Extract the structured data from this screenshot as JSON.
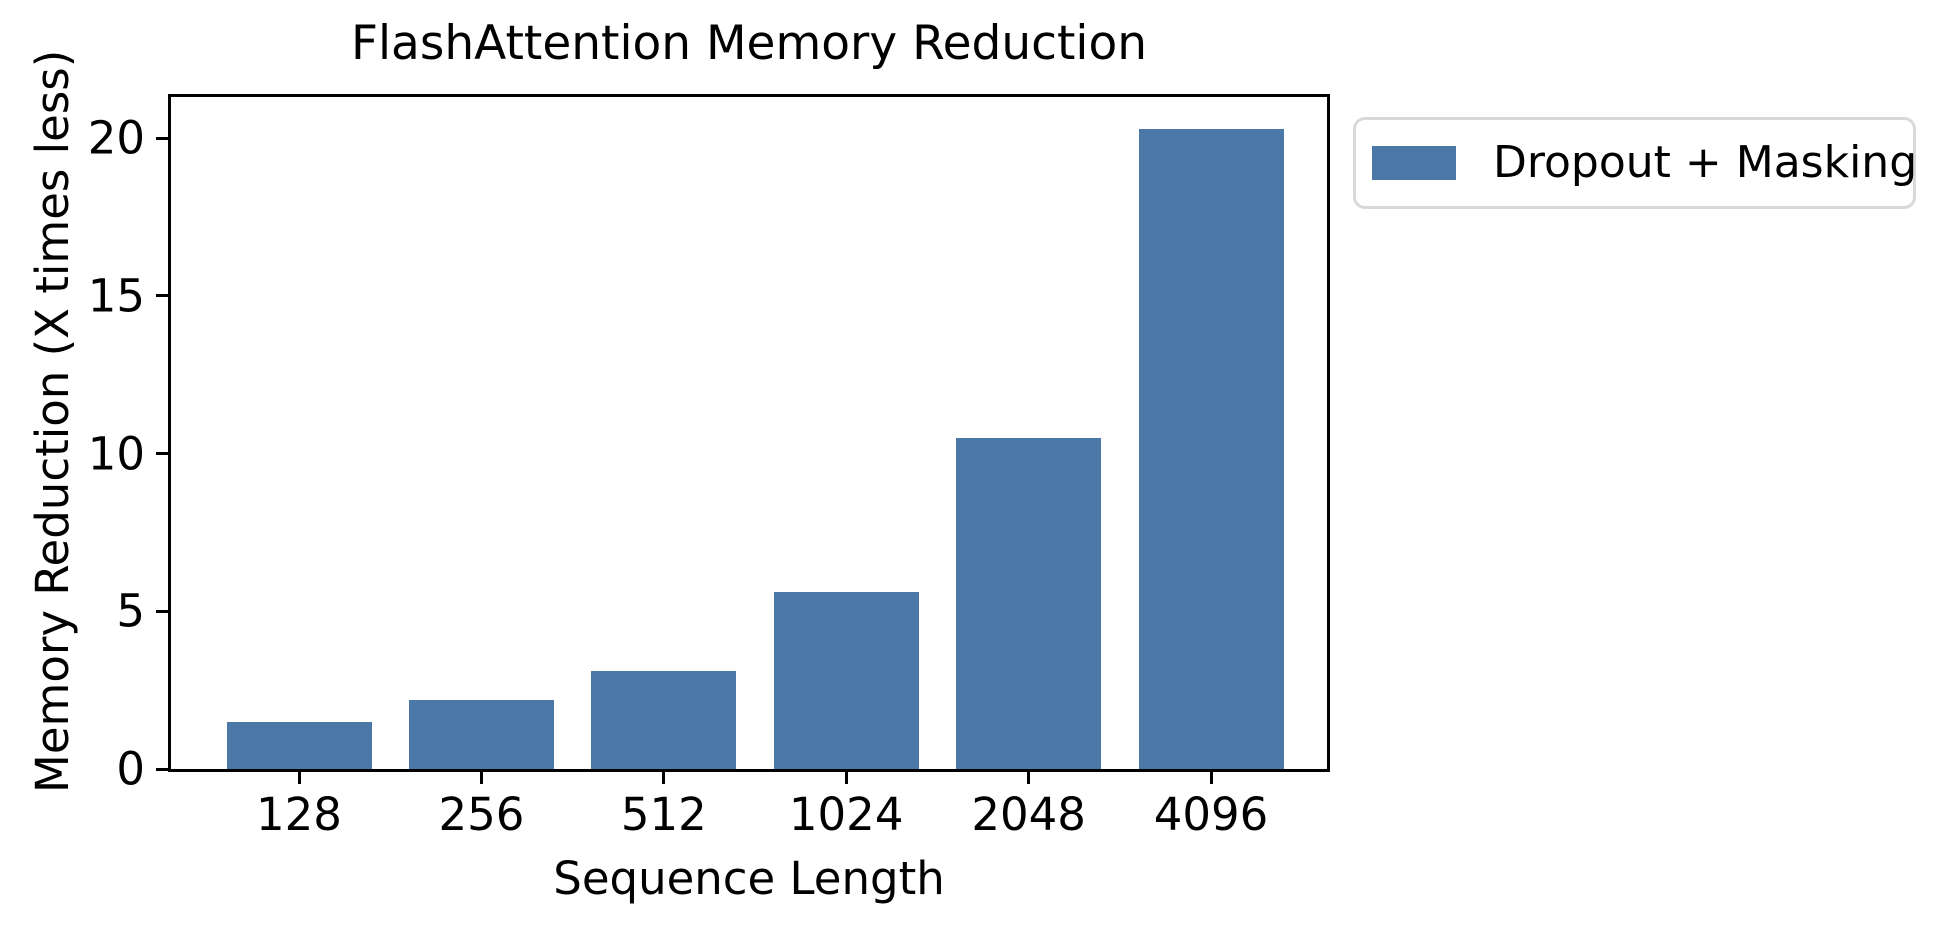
{
  "chart_data": {
    "type": "bar",
    "title": "FlashAttention Memory Reduction",
    "xlabel": "Sequence Length",
    "ylabel": "Memory Reduction (X times less)",
    "categories": [
      "128",
      "256",
      "512",
      "1024",
      "2048",
      "4096"
    ],
    "values": [
      1.5,
      2.2,
      3.1,
      5.6,
      10.5,
      20.3
    ],
    "series": [
      {
        "name": "Dropout + Masking",
        "values": [
          1.5,
          2.2,
          3.1,
          5.6,
          10.5,
          20.3
        ]
      }
    ],
    "legend": [
      "Dropout + Masking"
    ],
    "legend_position": "outside-upper-right",
    "yticks": [
      0,
      5,
      10,
      15,
      20
    ],
    "ylim": [
      0,
      21.3
    ],
    "grid": false,
    "bar_color": "#4C78A8",
    "axis_color": "#000000",
    "text_color": "#000000"
  }
}
